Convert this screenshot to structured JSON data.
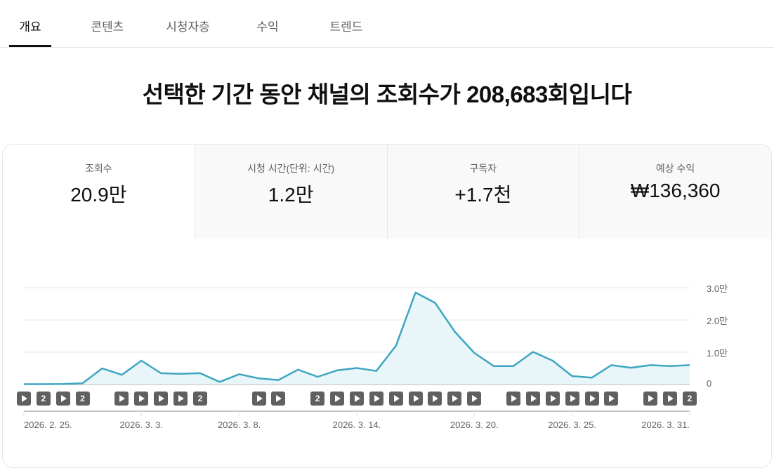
{
  "tabs": [
    {
      "label": "개요",
      "active": true
    },
    {
      "label": "콘텐츠",
      "active": false
    },
    {
      "label": "시청자층",
      "active": false
    },
    {
      "label": "수익",
      "active": false
    },
    {
      "label": "트렌드",
      "active": false
    }
  ],
  "headline": "선택한 기간 동안 채널의 조회수가 208,683회입니다",
  "metrics": [
    {
      "label": "조회수",
      "value": "20.9만",
      "active": true
    },
    {
      "label": "시청 시간(단위: 시간)",
      "value": "1.2만",
      "active": false
    },
    {
      "label": "구독자",
      "value": "+1.7천",
      "active": false
    },
    {
      "label": "예상 수익",
      "value": "₩136,360",
      "active": false
    }
  ],
  "colors": {
    "line": "#3ea6c2",
    "fill": "#e6f4f8",
    "marker": "#606060",
    "grid": "#e5e5e5"
  },
  "chart_data": {
    "type": "area",
    "title": "조회수",
    "xlabel": "",
    "ylabel": "",
    "y_ticks": [
      "0",
      "1.0만",
      "2.0만",
      "3.0만"
    ],
    "ylim": [
      0,
      30000
    ],
    "grid": true,
    "x_tick_labels": [
      "2026. 2. 25.",
      "2026. 3. 3.",
      "2026. 3. 8.",
      "2026. 3. 14.",
      "2026. 3. 20.",
      "2026. 3. 25.",
      "2026. 3. 31."
    ],
    "x_tick_indices": [
      0,
      6,
      11,
      17,
      23,
      28,
      34
    ],
    "x": [
      "2/25",
      "2/26",
      "2/27",
      "2/28",
      "3/1",
      "3/2",
      "3/3",
      "3/4",
      "3/5",
      "3/6",
      "3/7",
      "3/8",
      "3/9",
      "3/10",
      "3/11",
      "3/12",
      "3/13",
      "3/14",
      "3/15",
      "3/16",
      "3/17",
      "3/18",
      "3/19",
      "3/20",
      "3/21",
      "3/22",
      "3/23",
      "3/24",
      "3/25",
      "3/26",
      "3/27",
      "3/28",
      "3/29",
      "3/30",
      "3/31"
    ],
    "series": [
      {
        "name": "조회수",
        "values": [
          100,
          100,
          150,
          400,
          5000,
          3000,
          7400,
          3500,
          3300,
          3500,
          800,
          3200,
          1900,
          1400,
          4600,
          2400,
          4400,
          5100,
          4200,
          12000,
          28500,
          25300,
          16400,
          9800,
          5700,
          5700,
          10100,
          7400,
          2600,
          2100,
          6000,
          5200,
          6000,
          5700,
          6000
        ]
      }
    ],
    "video_markers": [
      "▶",
      "2",
      "▶",
      "2",
      "",
      "▶",
      "▶",
      "▶",
      "▶",
      "2",
      "",
      "",
      "▶",
      "▶",
      "",
      "2",
      "▶",
      "▶",
      "▶",
      "▶",
      "▶",
      "▶",
      "▶",
      "▶",
      "",
      "▶",
      "▶",
      "▶",
      "▶",
      "▶",
      "▶",
      "",
      "▶",
      "▶",
      "2"
    ]
  }
}
